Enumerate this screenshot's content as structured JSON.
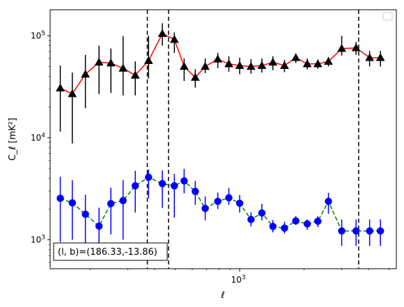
{
  "chart_data": {
    "type": "scatter",
    "title": "",
    "xlabel": "ℓ",
    "ylabel": "C_ℓ  [mK²]",
    "x_scale": "log",
    "y_scale": "log",
    "xlim": [
      130,
      5400
    ],
    "ylim": [
      520,
      180000
    ],
    "x_ticks": [
      {
        "value": 1000,
        "label": "10^3"
      }
    ],
    "y_ticks": [
      {
        "value": 1000,
        "label": "10^3"
      },
      {
        "value": 10000,
        "label": "10^4"
      },
      {
        "value": 100000,
        "label": "10^5"
      }
    ],
    "vlines": [
      370,
      465,
      3600
    ],
    "annotation": "(l, b)=(186.33,-13.86)",
    "legend": {
      "location": "top-right",
      "entries": []
    },
    "grid": false,
    "colors": {
      "upper_line": "#ff0000",
      "upper_marker": "#000000",
      "upper_error": "#000000",
      "lower_line": "#008000",
      "lower_marker": "#0000ff",
      "lower_error": "#0000ff",
      "vline": "#000000"
    },
    "series": [
      {
        "marker": "triangle",
        "line_style": "solid",
        "x": [
          145,
          165,
          190,
          220,
          250,
          285,
          325,
          375,
          435,
          495,
          550,
          620,
          690,
          790,
          890,
          1000,
          1130,
          1270,
          1430,
          1620,
          1830,
          2070,
          2320,
          2600,
          3000,
          3500,
          4050,
          4550
        ],
        "y": [
          30700,
          27000,
          42000,
          55000,
          54000,
          48000,
          41000,
          57000,
          105000,
          92000,
          50000,
          39000,
          50000,
          59000,
          53000,
          51000,
          50000,
          51000,
          55000,
          51000,
          61000,
          53000,
          53000,
          56000,
          75000,
          76000,
          61000,
          61000
        ],
        "y_low": [
          11500,
          8800,
          19500,
          26800,
          27500,
          26000,
          26000,
          38000,
          80000,
          68000,
          36000,
          31000,
          43000,
          48000,
          44500,
          42000,
          42500,
          43500,
          46000,
          44000,
          54000,
          47000,
          47500,
          50000,
          64000,
          65000,
          50000,
          50000
        ],
        "y_high": [
          51000,
          43500,
          65000,
          80000,
          75000,
          99000,
          56000,
          100000,
          133000,
          108000,
          60000,
          47000,
          60000,
          68000,
          63000,
          61000,
          59000,
          60000,
          63000,
          58000,
          67000,
          60000,
          58500,
          62000,
          100000,
          87000,
          71000,
          71000
        ]
      },
      {
        "marker": "circle",
        "line_style": "dashed",
        "x": [
          145,
          165,
          190,
          220,
          250,
          285,
          325,
          375,
          435,
          495,
          550,
          620,
          690,
          790,
          890,
          1000,
          1130,
          1270,
          1430,
          1620,
          1830,
          2070,
          2320,
          2600,
          3000,
          3500,
          4050,
          4550
        ],
        "y": [
          2550,
          2300,
          1780,
          1360,
          2260,
          2420,
          3380,
          4100,
          3550,
          3380,
          3780,
          2980,
          2030,
          2380,
          2580,
          2280,
          1580,
          1830,
          1350,
          1300,
          1530,
          1430,
          1520,
          2380,
          1220,
          1220,
          1220,
          1220
        ],
        "y_low": [
          950,
          1000,
          800,
          650,
          1130,
          1000,
          1850,
          2550,
          2050,
          1650,
          2850,
          2200,
          1550,
          2000,
          2200,
          1850,
          1350,
          1550,
          1180,
          1150,
          1400,
          1250,
          1330,
          1800,
          870,
          870,
          870,
          870
        ],
        "y_high": [
          4150,
          3830,
          2760,
          2060,
          3240,
          3840,
          4740,
          4880,
          4780,
          4420,
          4950,
          3780,
          2650,
          2900,
          3220,
          2750,
          1860,
          2250,
          1560,
          1500,
          1710,
          1580,
          1710,
          2880,
          1580,
          1580,
          1580,
          1580
        ]
      }
    ]
  }
}
